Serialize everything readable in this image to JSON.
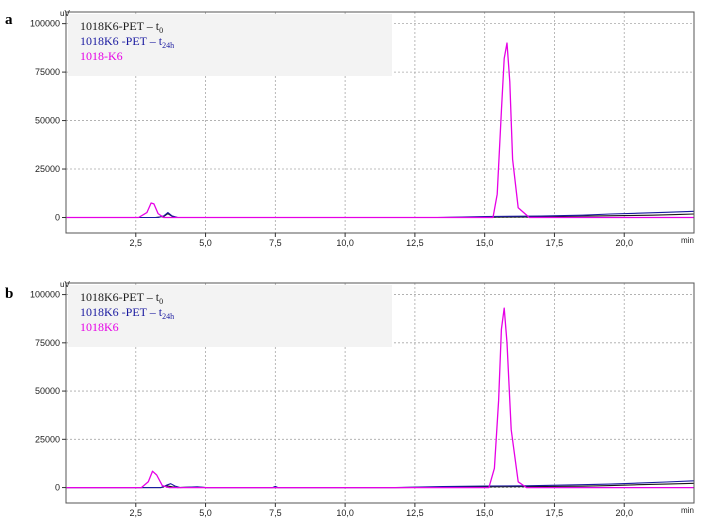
{
  "figure": {
    "colors": {
      "t0": "#1a1a1a",
      "t24h": "#1a1aa0",
      "k6": "#e600e6",
      "grid": "#a8a8a8",
      "frame": "#555555",
      "legend_bg": "#f3f3f3"
    }
  },
  "chart_data": [
    {
      "type": "line",
      "panel_label": "a",
      "yunit": "uV",
      "xunit": "min",
      "xlim": [
        0,
        22.5
      ],
      "ylim": [
        -8000,
        106000
      ],
      "xticks": [
        2.5,
        5.0,
        7.5,
        10.0,
        12.5,
        15.0,
        17.5,
        20.0
      ],
      "xtick_labels": [
        "2,5",
        "5,0",
        "7,5",
        "10,0",
        "12,5",
        "15,0",
        "17,5",
        "20,0"
      ],
      "yticks": [
        0,
        25000,
        50000,
        75000,
        100000
      ],
      "ytick_labels": [
        "0",
        "25000",
        "50000",
        "75000",
        "100000"
      ],
      "grid": true,
      "legend_position": "top-left",
      "legend": [
        {
          "series": "t0",
          "text": "1018K6-PET – t",
          "sub": "0"
        },
        {
          "series": "t24h",
          "text": "1018K6 -PET – t",
          "sub": "24h"
        },
        {
          "series": "k6",
          "text": "1018-K6",
          "sub": ""
        }
      ],
      "series": [
        {
          "name": "t0",
          "color": "#1a1a1a",
          "x": [
            0,
            3.2,
            3.5,
            3.65,
            3.8,
            4.0,
            13.5,
            17.0,
            18.0,
            19.0,
            20.0,
            21.0,
            22.0,
            22.5
          ],
          "y": [
            0,
            0,
            500,
            2000,
            600,
            0,
            0,
            300,
            600,
            800,
            1000,
            1200,
            1600,
            1800
          ]
        },
        {
          "name": "t24h",
          "color": "#1a1aa0",
          "x": [
            0,
            3.3,
            3.5,
            3.65,
            3.8,
            4.0,
            13.3,
            15.0,
            17.0,
            18.5,
            19.5,
            20.5,
            21.5,
            22.5
          ],
          "y": [
            0,
            0,
            800,
            2500,
            800,
            0,
            0,
            500,
            700,
            1200,
            1800,
            2200,
            2700,
            3200
          ]
        },
        {
          "name": "k6",
          "color": "#e600e6",
          "x": [
            0,
            2.6,
            2.9,
            3.05,
            3.15,
            3.3,
            3.5,
            15.3,
            15.45,
            15.6,
            15.7,
            15.8,
            15.9,
            16.0,
            16.2,
            16.6,
            22.5
          ],
          "y": [
            0,
            0,
            2500,
            7500,
            7000,
            2000,
            0,
            0,
            12000,
            55000,
            82000,
            90000,
            70000,
            30000,
            5000,
            0,
            0
          ]
        }
      ]
    },
    {
      "type": "line",
      "panel_label": "b",
      "yunit": "uV",
      "xunit": "min",
      "xlim": [
        0,
        22.5
      ],
      "ylim": [
        -8000,
        106000
      ],
      "xticks": [
        2.5,
        5.0,
        7.5,
        10.0,
        12.5,
        15.0,
        17.5,
        20.0
      ],
      "xtick_labels": [
        "2,5",
        "5,0",
        "7,5",
        "10,0",
        "12,5",
        "15,0",
        "17,5",
        "20,0"
      ],
      "yticks": [
        0,
        25000,
        50000,
        75000,
        100000
      ],
      "ytick_labels": [
        "0",
        "25000",
        "50000",
        "75000",
        "100000"
      ],
      "grid": true,
      "legend_position": "top-left",
      "legend": [
        {
          "series": "t0",
          "text": "1018K6-PET – t",
          "sub": "0"
        },
        {
          "series": "t24h",
          "text": "1018K6 -PET – t",
          "sub": "24h"
        },
        {
          "series": "k6",
          "text": "1018K6",
          "sub": ""
        }
      ],
      "series": [
        {
          "name": "t0",
          "color": "#1a1a1a",
          "x": [
            0,
            3.4,
            3.6,
            3.8,
            4.0,
            4.6,
            5.0,
            12.0,
            14.0,
            16.5,
            18.5,
            19.5,
            20.5,
            21.5,
            22.5
          ],
          "y": [
            0,
            0,
            900,
            400,
            0,
            300,
            0,
            0,
            300,
            500,
            700,
            1000,
            1500,
            1800,
            2200
          ]
        },
        {
          "name": "t24h",
          "color": "#1a1aa0",
          "x": [
            0,
            3.4,
            3.6,
            3.75,
            3.9,
            4.1,
            4.7,
            5.0,
            7.4,
            7.5,
            7.6,
            11.8,
            13.5,
            15.0,
            16.5,
            18.5,
            19.5,
            20.5,
            21.5,
            22.5
          ],
          "y": [
            0,
            0,
            1200,
            2000,
            800,
            0,
            400,
            0,
            0,
            600,
            0,
            0,
            500,
            800,
            900,
            1500,
            1800,
            2300,
            2900,
            3500
          ]
        },
        {
          "name": "k6",
          "color": "#e600e6",
          "x": [
            0,
            2.7,
            2.95,
            3.1,
            3.25,
            3.45,
            3.7,
            15.15,
            15.35,
            15.5,
            15.6,
            15.7,
            15.8,
            15.95,
            16.2,
            16.5,
            22.5
          ],
          "y": [
            0,
            0,
            3000,
            8500,
            6500,
            1000,
            0,
            0,
            10000,
            45000,
            82000,
            93000,
            75000,
            30000,
            3000,
            0,
            0
          ]
        }
      ]
    }
  ]
}
